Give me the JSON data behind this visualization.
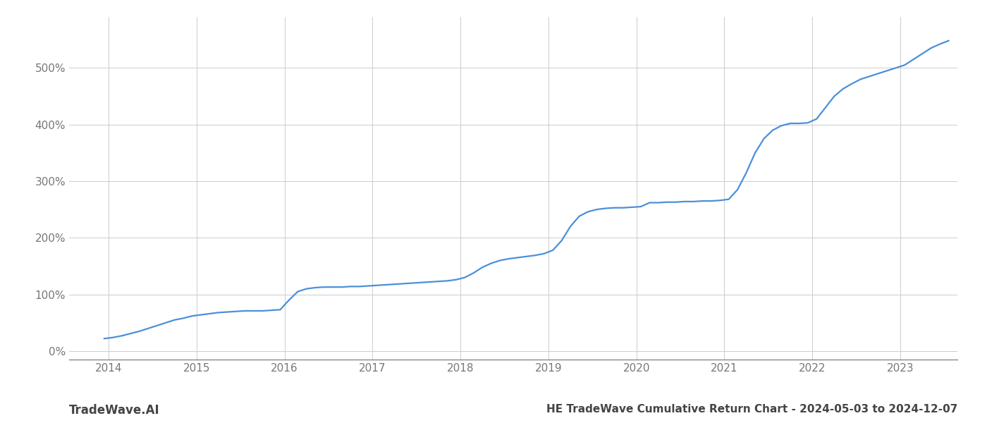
{
  "title": "HE TradeWave Cumulative Return Chart - 2024-05-03 to 2024-12-07",
  "watermark": "TradeWave.AI",
  "line_color": "#4a90d9",
  "background_color": "#ffffff",
  "grid_color": "#cccccc",
  "x_years": [
    2014,
    2015,
    2016,
    2017,
    2018,
    2019,
    2020,
    2021,
    2022,
    2023
  ],
  "y_ticks": [
    0,
    100,
    200,
    300,
    400,
    500
  ],
  "y_labels": [
    "0%",
    "100%",
    "200%",
    "300%",
    "400%",
    "500%"
  ],
  "ylim": [
    -15,
    590
  ],
  "xlim": [
    2013.55,
    2023.65
  ],
  "data_x": [
    2013.95,
    2014.05,
    2014.15,
    2014.25,
    2014.35,
    2014.45,
    2014.55,
    2014.65,
    2014.75,
    2014.85,
    2014.95,
    2015.05,
    2015.15,
    2015.25,
    2015.35,
    2015.45,
    2015.55,
    2015.65,
    2015.75,
    2015.85,
    2015.95,
    2016.05,
    2016.15,
    2016.25,
    2016.35,
    2016.45,
    2016.55,
    2016.65,
    2016.75,
    2016.85,
    2016.95,
    2017.05,
    2017.15,
    2017.25,
    2017.35,
    2017.45,
    2017.55,
    2017.65,
    2017.75,
    2017.85,
    2017.95,
    2018.05,
    2018.15,
    2018.25,
    2018.35,
    2018.45,
    2018.55,
    2018.65,
    2018.75,
    2018.85,
    2018.95,
    2019.05,
    2019.15,
    2019.25,
    2019.35,
    2019.45,
    2019.55,
    2019.65,
    2019.75,
    2019.85,
    2019.95,
    2020.05,
    2020.15,
    2020.25,
    2020.35,
    2020.45,
    2020.55,
    2020.65,
    2020.75,
    2020.85,
    2020.95,
    2021.05,
    2021.15,
    2021.25,
    2021.35,
    2021.45,
    2021.55,
    2021.65,
    2021.75,
    2021.85,
    2021.95,
    2022.05,
    2022.15,
    2022.25,
    2022.35,
    2022.45,
    2022.55,
    2022.65,
    2022.75,
    2022.85,
    2022.95,
    2023.05,
    2023.15,
    2023.25,
    2023.35,
    2023.45,
    2023.55
  ],
  "data_y": [
    22,
    24,
    27,
    31,
    35,
    40,
    45,
    50,
    55,
    58,
    62,
    64,
    66,
    68,
    69,
    70,
    71,
    71,
    71,
    72,
    73,
    90,
    105,
    110,
    112,
    113,
    113,
    113,
    114,
    114,
    115,
    116,
    117,
    118,
    119,
    120,
    121,
    122,
    123,
    124,
    126,
    130,
    138,
    148,
    155,
    160,
    163,
    165,
    167,
    169,
    172,
    178,
    195,
    220,
    238,
    246,
    250,
    252,
    253,
    253,
    254,
    255,
    262,
    262,
    263,
    263,
    264,
    264,
    265,
    265,
    266,
    268,
    285,
    315,
    350,
    375,
    390,
    398,
    402,
    402,
    403,
    410,
    430,
    450,
    463,
    472,
    480,
    485,
    490,
    495,
    500,
    505,
    515,
    525,
    535,
    542,
    548
  ],
  "title_fontsize": 11,
  "tick_fontsize": 11,
  "watermark_fontsize": 12,
  "line_width": 1.6
}
